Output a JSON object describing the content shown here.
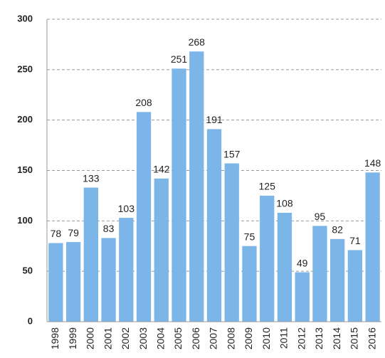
{
  "chart_data": {
    "type": "bar",
    "categories": [
      "1998",
      "1999",
      "2000",
      "2001",
      "2002",
      "2003",
      "2004",
      "2005",
      "2006",
      "2007",
      "2008",
      "2009",
      "2010",
      "2011",
      "2012",
      "2013",
      "2014",
      "2015",
      "2016"
    ],
    "values": [
      78,
      79,
      133,
      83,
      103,
      208,
      142,
      251,
      268,
      191,
      157,
      75,
      125,
      108,
      49,
      95,
      82,
      71,
      148
    ],
    "color": "#7cb5e8",
    "ylim": [
      0,
      300
    ],
    "yticks": [
      0,
      50,
      100,
      150,
      200,
      250,
      300
    ],
    "grid": true
  }
}
